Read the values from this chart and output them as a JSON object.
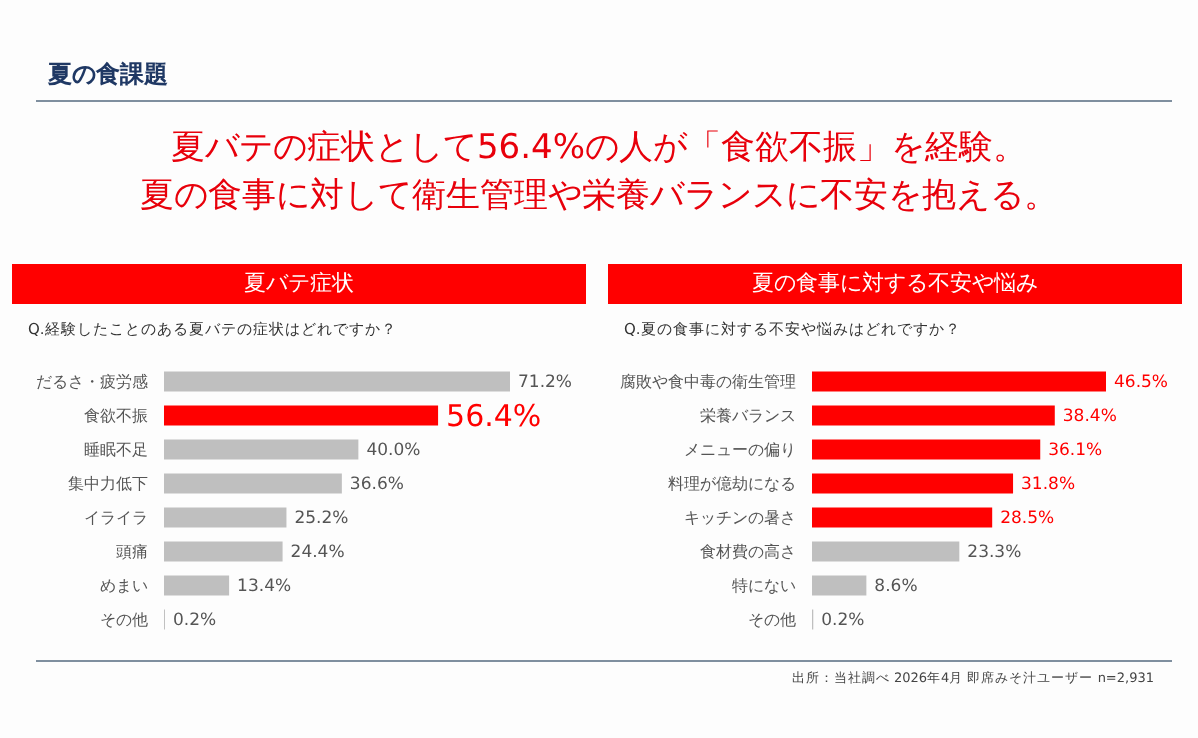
{
  "chart_data": [
    {
      "type": "bar",
      "orientation": "horizontal",
      "title": "夏バテ症状",
      "subtitle": "Q.経験したことのある夏バテの症状はどれですか？",
      "annotations": [
        "夏の食課題",
        "夏バテの症状として56.4%の人が「食欲不振」を経験。",
        "夏の食事に対して衛生管理や栄養バランスに不安を抱える。"
      ],
      "categories": [
        "だるさ・疲労感",
        "食欲不振",
        "睡眠不足",
        "集中力低下",
        "イライラ",
        "頭痛",
        "めまい",
        "その他"
      ],
      "values": [
        71.2,
        56.4,
        40.0,
        36.6,
        25.2,
        24.4,
        13.4,
        0.2
      ],
      "colors": [
        "#bfbfbf",
        "#ff0000",
        "#bfbfbf",
        "#bfbfbf",
        "#bfbfbf",
        "#bfbfbf",
        "#bfbfbf",
        "#bfbfbf"
      ],
      "value_labels": [
        "71.2%",
        "56.4%",
        "40.0%",
        "36.6%",
        "25.2%",
        "24.4%",
        "13.4%",
        "0.2%"
      ],
      "data_labels": false
    },
    {
      "type": "bar",
      "orientation": "horizontal",
      "title": "夏の食事に対する不安や悩み",
      "subtitle": "Q.夏の食事に対する不安や悩みはどれですか？",
      "annotations": [
        "出所：当社調べ 2026年4月 即席みそ汁ユーザー n=2,931"
      ],
      "categories": [
        "腐敗や食中毒の衛生管理",
        "栄養バランス",
        "メニューの偏り",
        "料理が億劫になる",
        "キッチンの暑さ",
        "食材費の高さ",
        "特にない",
        "その他"
      ],
      "values": [
        46.5,
        38.4,
        36.1,
        31.8,
        28.5,
        23.3,
        8.6,
        0.2
      ],
      "colors": [
        "#ff0000",
        "#ff0000",
        "#ff0000",
        "#ff0000",
        "#ff0000",
        "#bfbfbf",
        "#bfbfbf",
        "#bfbfbf"
      ],
      "value_labels": [
        "46.5%",
        "38.4%",
        "36.1%",
        "31.8%",
        "28.5%",
        "23.3%",
        "8.6%",
        "0.2%"
      ],
      "data_labels": false
    }
  ]
}
